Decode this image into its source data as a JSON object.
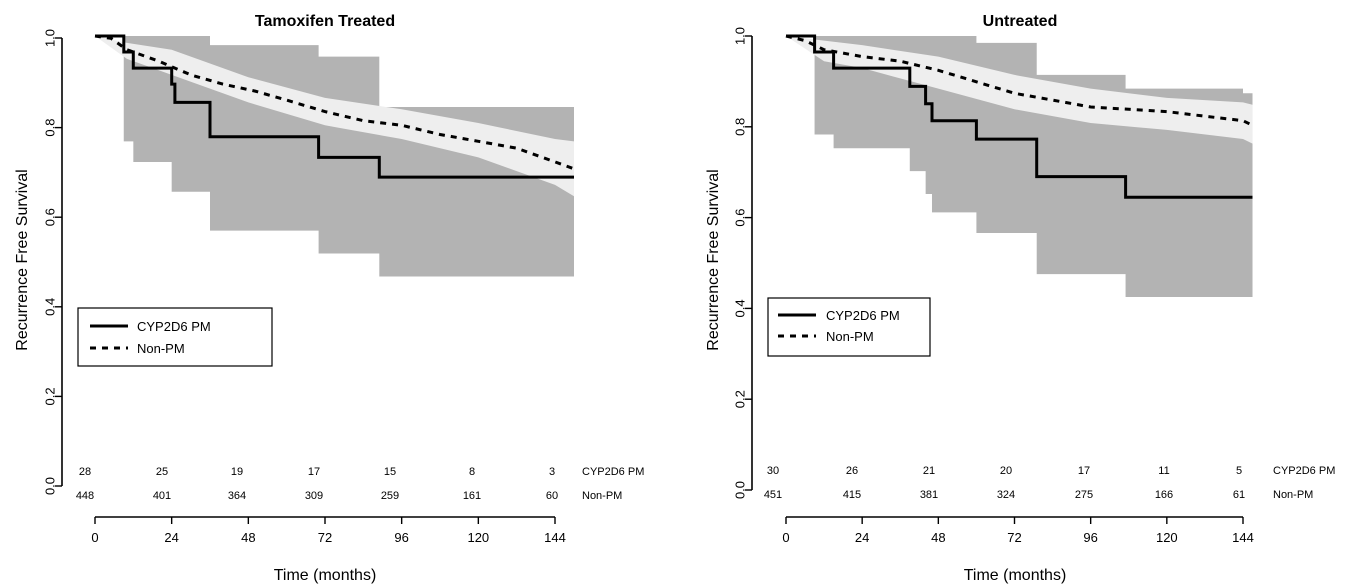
{
  "chart_data": [
    {
      "type": "line",
      "title": "Tamoxifen Treated",
      "xlabel": "Time (months)",
      "ylabel": "Recurrence Free Survival",
      "xlim": [
        0,
        147
      ],
      "ylim": [
        0,
        1
      ],
      "x_ticks": [
        "0",
        "24",
        "48",
        "72",
        "96",
        "120",
        "144"
      ],
      "y_ticks": [
        "0.0",
        "0.2",
        "0.4",
        "0.6",
        "0.8",
        "1.0"
      ],
      "legend": {
        "placement": "middle-left",
        "entries": [
          "CYP2D6 PM",
          "Non-PM"
        ]
      },
      "colors": {
        "line": "#000000",
        "band_pm": "#b3b3b3",
        "band_nonpm": "#eeeeee"
      },
      "series": [
        {
          "name": "CYP2D6 PM",
          "style": "solid",
          "steps": [
            [
              0,
              1.0
            ],
            [
              9,
              0.965
            ],
            [
              12,
              0.93
            ],
            [
              24,
              0.895
            ],
            [
              25,
              0.855
            ],
            [
              36,
              0.78
            ],
            [
              70,
              0.735
            ],
            [
              89,
              0.692
            ],
            [
              154,
              0.692
            ]
          ],
          "band_lower": [
            [
              0,
              1.0
            ],
            [
              9,
              0.77
            ],
            [
              12,
              0.725
            ],
            [
              24,
              0.66
            ],
            [
              36,
              0.575
            ],
            [
              70,
              0.525
            ],
            [
              89,
              0.475
            ],
            [
              154,
              0.475
            ]
          ],
          "band_upper": [
            [
              0,
              1.0
            ],
            [
              9,
              1.0
            ],
            [
              36,
              0.98
            ],
            [
              70,
              0.955
            ],
            [
              89,
              0.845
            ],
            [
              154,
              0.84
            ]
          ]
        },
        {
          "name": "Non-PM",
          "style": "dashed",
          "points": [
            [
              0,
              1.0
            ],
            [
              5,
              0.995
            ],
            [
              10,
              0.97
            ],
            [
              20,
              0.945
            ],
            [
              30,
              0.915
            ],
            [
              40,
              0.895
            ],
            [
              50,
              0.88
            ],
            [
              60,
              0.86
            ],
            [
              72,
              0.835
            ],
            [
              84,
              0.815
            ],
            [
              96,
              0.805
            ],
            [
              108,
              0.785
            ],
            [
              120,
              0.77
            ],
            [
              132,
              0.755
            ],
            [
              144,
              0.725
            ],
            [
              154,
              0.71
            ]
          ],
          "band_lower": [
            [
              0,
              1.0
            ],
            [
              10,
              0.95
            ],
            [
              24,
              0.915
            ],
            [
              48,
              0.855
            ],
            [
              72,
              0.805
            ],
            [
              96,
              0.775
            ],
            [
              120,
              0.735
            ],
            [
              144,
              0.675
            ],
            [
              154,
              0.65
            ]
          ],
          "band_upper": [
            [
              0,
              1.0
            ],
            [
              10,
              0.985
            ],
            [
              24,
              0.97
            ],
            [
              48,
              0.91
            ],
            [
              72,
              0.865
            ],
            [
              96,
              0.84
            ],
            [
              120,
              0.81
            ],
            [
              144,
              0.775
            ],
            [
              154,
              0.77
            ]
          ]
        }
      ],
      "risk_table": {
        "rows": [
          {
            "label": "CYP2D6 PM",
            "values": [
              "28",
              "25",
              "19",
              "17",
              "15",
              "8",
              "3"
            ]
          },
          {
            "label": "Non-PM",
            "values": [
              "448",
              "401",
              "364",
              "309",
              "259",
              "161",
              "60"
            ]
          }
        ]
      }
    },
    {
      "type": "line",
      "title": "Untreated",
      "xlabel": "Time (months)",
      "ylabel": "Recurrence Free Survival",
      "xlim": [
        0,
        147
      ],
      "ylim": [
        0,
        1
      ],
      "x_ticks": [
        "0",
        "24",
        "48",
        "72",
        "96",
        "120",
        "144"
      ],
      "y_ticks": [
        "0.0",
        "0.2",
        "0.4",
        "0.6",
        "0.8",
        "1.0"
      ],
      "legend": {
        "placement": "middle-left",
        "entries": [
          "CYP2D6 PM",
          "Non-PM"
        ]
      },
      "colors": {
        "line": "#000000",
        "band_pm": "#b3b3b3",
        "band_nonpm": "#eeeeee"
      },
      "series": [
        {
          "name": "CYP2D6 PM",
          "style": "solid",
          "steps": [
            [
              0,
              1.0
            ],
            [
              9,
              0.965
            ],
            [
              15,
              0.93
            ],
            [
              39,
              0.89
            ],
            [
              44,
              0.852
            ],
            [
              46,
              0.815
            ],
            [
              60,
              0.775
            ],
            [
              79,
              0.693
            ],
            [
              107,
              0.648
            ],
            [
              147,
              0.648
            ]
          ],
          "band_lower": [
            [
              0,
              1.0
            ],
            [
              9,
              0.785
            ],
            [
              15,
              0.755
            ],
            [
              39,
              0.705
            ],
            [
              44,
              0.655
            ],
            [
              46,
              0.615
            ],
            [
              60,
              0.57
            ],
            [
              79,
              0.48
            ],
            [
              107,
              0.43
            ],
            [
              147,
              0.43
            ]
          ],
          "band_upper": [
            [
              0,
              1.0
            ],
            [
              9,
              1.0
            ],
            [
              46,
              1.0
            ],
            [
              60,
              0.985
            ],
            [
              79,
              0.915
            ],
            [
              107,
              0.885
            ],
            [
              144,
              0.875
            ],
            [
              147,
              0.87
            ]
          ]
        },
        {
          "name": "Non-PM",
          "style": "dashed",
          "points": [
            [
              0,
              1.0
            ],
            [
              6,
              0.99
            ],
            [
              12,
              0.97
            ],
            [
              24,
              0.955
            ],
            [
              36,
              0.945
            ],
            [
              48,
              0.925
            ],
            [
              60,
              0.9
            ],
            [
              72,
              0.875
            ],
            [
              84,
              0.86
            ],
            [
              96,
              0.845
            ],
            [
              108,
              0.84
            ],
            [
              120,
              0.835
            ],
            [
              132,
              0.825
            ],
            [
              144,
              0.815
            ],
            [
              147,
              0.805
            ]
          ],
          "band_lower": [
            [
              0,
              1.0
            ],
            [
              12,
              0.945
            ],
            [
              24,
              0.93
            ],
            [
              48,
              0.885
            ],
            [
              72,
              0.84
            ],
            [
              96,
              0.81
            ],
            [
              120,
              0.795
            ],
            [
              144,
              0.775
            ],
            [
              147,
              0.765
            ]
          ],
          "band_upper": [
            [
              0,
              1.0
            ],
            [
              12,
              0.99
            ],
            [
              24,
              0.98
            ],
            [
              48,
              0.955
            ],
            [
              72,
              0.915
            ],
            [
              96,
              0.885
            ],
            [
              120,
              0.865
            ],
            [
              144,
              0.855
            ],
            [
              147,
              0.85
            ]
          ]
        }
      ],
      "risk_table": {
        "rows": [
          {
            "label": "CYP2D6 PM",
            "values": [
              "30",
              "26",
              "21",
              "20",
              "17",
              "11",
              "5"
            ]
          },
          {
            "label": "Non-PM",
            "values": [
              "451",
              "415",
              "381",
              "324",
              "275",
              "166",
              "61"
            ]
          }
        ]
      }
    }
  ]
}
